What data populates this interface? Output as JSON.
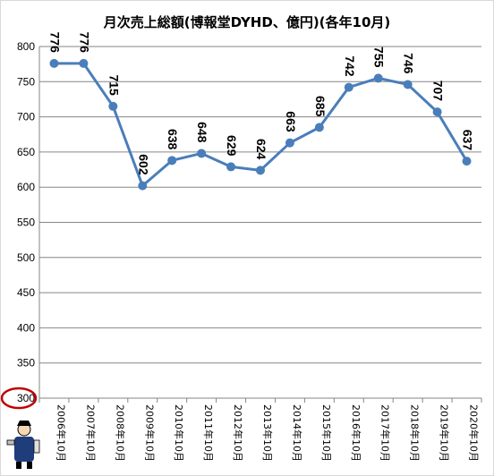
{
  "chart_data": {
    "type": "line",
    "title": "月次売上総額(博報堂DYHD、億円)(各年10月)",
    "categories": [
      "2006年10月",
      "2007年10月",
      "2008年10月",
      "2009年10月",
      "2010年10月",
      "2011年10月",
      "2012年10月",
      "2013年10月",
      "2014年10月",
      "2015年10月",
      "2016年10月",
      "2017年10月",
      "2018年10月",
      "2019年10月",
      "2020年10月"
    ],
    "series": [
      {
        "values": [
          776,
          776,
          715,
          602,
          638,
          648,
          629,
          624,
          663,
          685,
          742,
          755,
          746,
          707,
          637
        ]
      }
    ],
    "ylim": [
      300,
      800
    ],
    "yticks": [
      "300",
      "350",
      "400",
      "450",
      "500",
      "550",
      "600",
      "650",
      "700",
      "750",
      "800"
    ],
    "grid": true,
    "colors": {
      "line": "#4a7ebb",
      "marker": "#4a7ebb",
      "grid": "#868686",
      "highlight": "#c00000"
    }
  }
}
